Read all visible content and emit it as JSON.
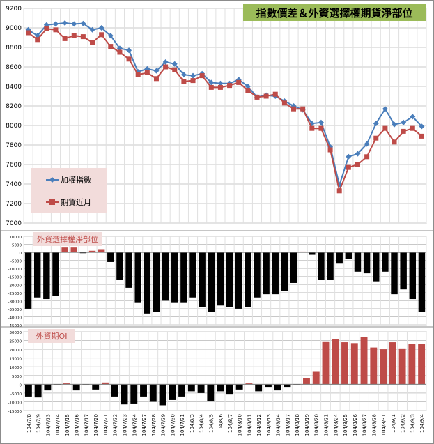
{
  "chart_data": [
    {
      "type": "line",
      "title": "指數價差＆外資選擇權期貨淨部位",
      "ylim": [
        7000,
        9200
      ],
      "yticks": [
        7000,
        7200,
        7400,
        7600,
        7800,
        8000,
        8200,
        8400,
        8600,
        8800,
        9000,
        9200
      ],
      "grid": true,
      "legend": "lower-left",
      "series": [
        {
          "name": "加權指數",
          "color": "#4a7ebb",
          "marker": "diamond",
          "values": [
            8980,
            8920,
            9030,
            9040,
            9050,
            9040,
            9045,
            8980,
            9000,
            8920,
            8790,
            8770,
            8550,
            8580,
            8560,
            8650,
            8630,
            8520,
            8510,
            8530,
            8440,
            8430,
            8430,
            8470,
            8400,
            8290,
            8310,
            8300,
            8250,
            8200,
            8160,
            8020,
            8030,
            7780,
            7390,
            7680,
            7710,
            7810,
            8020,
            8170,
            8010,
            8030,
            8090,
            7990
          ]
        },
        {
          "name": "期貨近月",
          "color": "#be4b48",
          "marker": "square",
          "values": [
            8950,
            8880,
            8990,
            8980,
            8890,
            8920,
            8910,
            8850,
            8930,
            8810,
            8750,
            8680,
            8520,
            8540,
            8480,
            8600,
            8570,
            8450,
            8460,
            8510,
            8390,
            8390,
            8410,
            8440,
            8360,
            8290,
            8300,
            8320,
            8230,
            8170,
            8170,
            7970,
            7970,
            7750,
            7330,
            7570,
            7600,
            7680,
            7870,
            7970,
            7830,
            7940,
            7970,
            7890
          ]
        }
      ]
    },
    {
      "type": "bar",
      "title": "外資選擇權淨部位",
      "ylim": [
        -45000,
        10000
      ],
      "yticks": [
        10000,
        5000,
        0,
        -5000,
        -10000,
        -15000,
        -20000,
        -25000,
        -30000,
        -35000,
        -40000,
        -45000
      ],
      "series": [
        {
          "color": "#be4b48",
          "values": [
            -35000,
            -28000,
            -29000,
            -27000,
            3000,
            3000,
            -500,
            1000,
            2000,
            -6000,
            -17000,
            -22000,
            -31000,
            -38000,
            -37000,
            -30000,
            -31000,
            -31000,
            -28000,
            -34000,
            -37000,
            -33000,
            -34000,
            -35000,
            -34000,
            -28000,
            -26000,
            -26000,
            -24000,
            -19000,
            500,
            -1500,
            -17000,
            -17000,
            -7000,
            -4000,
            -12000,
            -13000,
            -18000,
            -12000,
            -26000,
            -23000,
            -29000,
            -37000
          ]
        }
      ]
    },
    {
      "type": "bar",
      "title": "外資期OI",
      "ylim": [
        -15000,
        30000
      ],
      "yticks": [
        30000,
        25000,
        20000,
        15000,
        10000,
        5000,
        0,
        -5000,
        -10000,
        -15000
      ],
      "categories": [
        "104/7/8",
        "104/7/9",
        "104/7/13",
        "104/7/14",
        "104/7/15",
        "104/7/16",
        "104/7/17",
        "104/7/20",
        "104/7/21",
        "104/7/22",
        "104/7/23",
        "104/7/24",
        "104/7/27",
        "104/7/28",
        "104/7/29",
        "104/7/30",
        "104/7/31",
        "104/8/3",
        "104/8/4",
        "104/8/5",
        "104/8/6",
        "104/8/7",
        "104/8/10",
        "104/8/11",
        "104/8/12",
        "104/8/13",
        "104/8/14",
        "104/8/17",
        "104/8/18",
        "104/8/19",
        "104/8/20",
        "104/8/21",
        "104/8/24",
        "104/8/25",
        "104/8/26",
        "104/8/27",
        "104/8/28",
        "104/8/31",
        "104/9/1",
        "104/9/2",
        "104/9/3",
        "104/9/4"
      ],
      "series": [
        {
          "color": "#be4b48",
          "values": [
            -7000,
            -7500,
            -3500,
            -500,
            500,
            -3500,
            -500,
            -3000,
            1000,
            -7000,
            -11500,
            -11000,
            -7000,
            -10000,
            -12000,
            -9000,
            -7000,
            -4000,
            -5000,
            -9500,
            -4000,
            -5500,
            -3000,
            500,
            -4000,
            -1500,
            -3500,
            -1500,
            -500,
            3500,
            7500,
            24500,
            26000,
            24000,
            23500,
            27000,
            21000,
            20000,
            24000,
            20500,
            23000,
            23000
          ]
        }
      ]
    }
  ]
}
